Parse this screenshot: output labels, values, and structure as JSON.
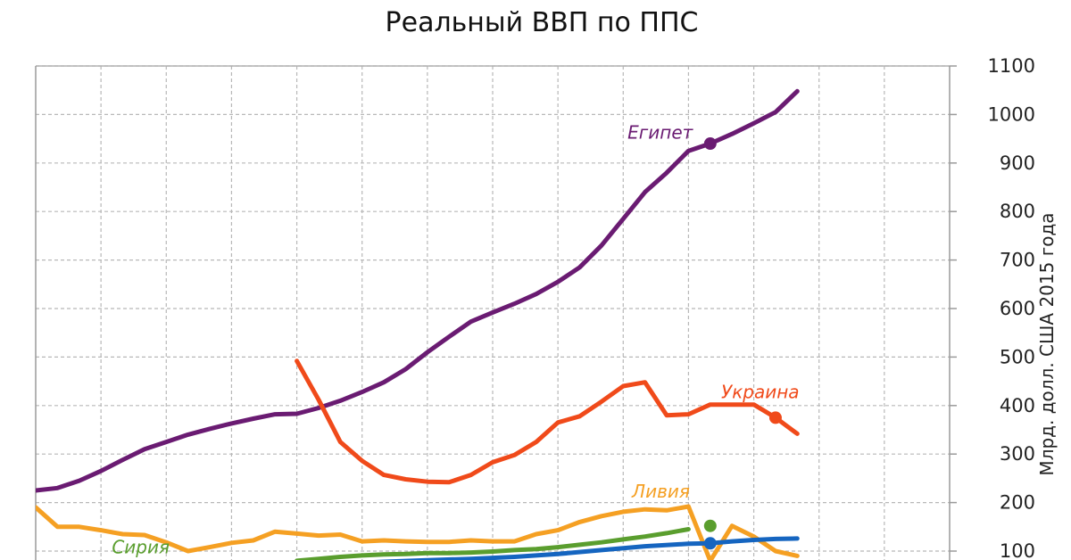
{
  "chart_data": {
    "type": "line",
    "title": "Реальный ВВП по ППС",
    "ylabel": "Млрд. долл. США 2015 года",
    "xlabel": "",
    "ylim": [
      100,
      1100
    ],
    "y_ticks": [
      100,
      200,
      300,
      400,
      500,
      600,
      700,
      800,
      900,
      1000,
      1100
    ],
    "x_range": [
      1980,
      2022
    ],
    "x_gridlines": [
      1983,
      1986,
      1989,
      1992,
      1995,
      1998,
      2001,
      2004,
      2007,
      2010,
      2013,
      2016,
      2019
    ],
    "y_axis_position": "right",
    "grid": true,
    "series": [
      {
        "name": "Египет",
        "color": "#6a1b72",
        "x": [
          1980,
          1981,
          1982,
          1983,
          1984,
          1985,
          1986,
          1987,
          1988,
          1989,
          1990,
          1991,
          1992,
          1993,
          1994,
          1995,
          1996,
          1997,
          1998,
          1999,
          2000,
          2001,
          2002,
          2003,
          2004,
          2005,
          2006,
          2007,
          2008,
          2009,
          2010,
          2011,
          2012,
          2013,
          2014,
          2015,
          2016,
          2017
        ],
        "y": [
          225,
          230,
          245,
          265,
          288,
          310,
          325,
          340,
          352,
          363,
          373,
          382,
          383,
          395,
          410,
          428,
          448,
          475,
          510,
          542,
          573,
          592,
          610,
          630,
          655,
          685,
          730,
          785,
          840,
          880,
          925,
          940,
          960,
          982,
          1005,
          1048,
          null,
          null
        ],
        "markers": [
          {
            "x": 2011,
            "y": 940
          }
        ]
      },
      {
        "name": "Украина",
        "color": "#f04a1a",
        "x": [
          1992,
          1993,
          1994,
          1995,
          1996,
          1997,
          1998,
          1999,
          2000,
          2001,
          2002,
          2003,
          2004,
          2005,
          2006,
          2007,
          2008,
          2009,
          2010,
          2011,
          2012,
          2013,
          2014,
          2015
        ],
        "y": [
          492,
          412,
          325,
          286,
          257,
          248,
          243,
          242,
          257,
          283,
          298,
          325,
          365,
          378,
          408,
          440,
          448,
          380,
          382,
          402,
          402,
          402,
          375,
          342
        ],
        "markers": [
          {
            "x": 2014,
            "y": 375
          }
        ]
      },
      {
        "name": "Ливия",
        "color": "#f5a023",
        "x": [
          1980,
          1981,
          1982,
          1983,
          1984,
          1985,
          1986,
          1987,
          1988,
          1989,
          1990,
          1991,
          1992,
          1993,
          1994,
          1995,
          1996,
          1997,
          1998,
          1999,
          2000,
          2001,
          2002,
          2003,
          2004,
          2005,
          2006,
          2007,
          2008,
          2009,
          2010,
          2011,
          2012,
          2013,
          2014,
          2015
        ],
        "y": [
          190,
          150,
          150,
          143,
          135,
          133,
          118,
          100,
          108,
          117,
          122,
          140,
          136,
          132,
          134,
          120,
          122,
          120,
          119,
          119,
          122,
          120,
          120,
          135,
          143,
          160,
          172,
          181,
          186,
          184,
          192,
          80,
          152,
          130,
          100,
          90
        ]
      },
      {
        "name": "Сирия",
        "color": "#5a9e2e",
        "x": [
          1992,
          1993,
          1994,
          1995,
          1996,
          1997,
          1998,
          1999,
          2000,
          2001,
          2002,
          2003,
          2004,
          2005,
          2006,
          2007,
          2008,
          2009,
          2010
        ],
        "y": [
          80,
          84,
          88,
          91,
          93,
          94,
          96,
          96,
          97,
          99,
          102,
          104,
          108,
          113,
          118,
          124,
          130,
          137,
          145
        ],
        "markers": [
          {
            "x": 2011,
            "y": 152
          }
        ]
      },
      {
        "name": "",
        "color": "#1565c0",
        "x": [
          1992,
          1994,
          1996,
          1998,
          2000,
          2002,
          2004,
          2006,
          2008,
          2010,
          2011,
          2012,
          2013,
          2014,
          2015
        ],
        "y": [
          70,
          74,
          78,
          81,
          84,
          88,
          94,
          102,
          110,
          115,
          116,
          120,
          123,
          125,
          126
        ],
        "markers": [
          {
            "x": 2011,
            "y": 116
          }
        ]
      }
    ],
    "labels": [
      {
        "text": "Египет",
        "series": 0,
        "x": 2007.2,
        "y": 950
      },
      {
        "text": "Украина",
        "series": 1,
        "x": 2011.5,
        "y": 415
      },
      {
        "text": "Ливия",
        "series": 2,
        "x": 2007.4,
        "y": 210
      },
      {
        "text": "Сирия",
        "series": 3,
        "x": 1983.5,
        "y": 95
      }
    ]
  }
}
